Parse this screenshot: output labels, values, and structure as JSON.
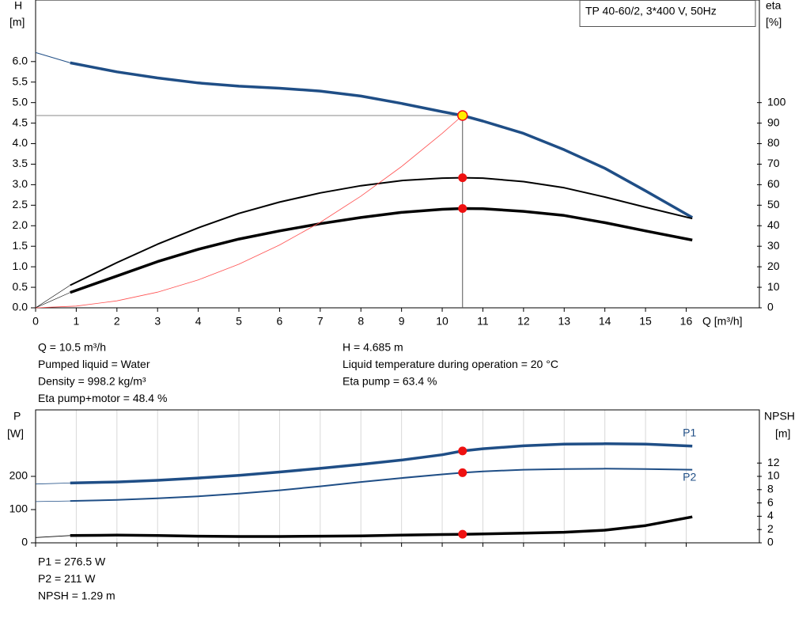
{
  "chart_data": [
    {
      "type": "line",
      "title": "TP 40-60/2, 3*400 V, 50Hz",
      "y_label": "H",
      "y_unit": "[m]",
      "y2_label": "eta",
      "y2_unit": "[%]",
      "x_label": "Q [m³/h]",
      "xlim": [
        0,
        17.8
      ],
      "xticks": [
        0,
        1,
        2,
        3,
        4,
        5,
        6,
        7,
        8,
        9,
        10,
        11,
        12,
        13,
        14,
        15,
        16
      ],
      "xtick_labels": true,
      "grid": false,
      "ylim": [
        0,
        7.5
      ],
      "yticks": [
        {
          "value": 0,
          "label": "0.0"
        },
        0.5,
        {
          "value": 1,
          "label": "1.0"
        },
        1.5,
        {
          "value": 2,
          "label": "2.0"
        },
        2.5,
        {
          "value": 3,
          "label": "3.0"
        },
        3.5,
        {
          "value": 4,
          "label": "4.0"
        },
        4.5,
        {
          "value": 5,
          "label": "5.0"
        },
        5.5,
        {
          "value": 6,
          "label": "6.0"
        }
      ],
      "y2lim": [
        0,
        150
      ],
      "y2ticks": [
        0,
        10,
        20,
        30,
        40,
        50,
        60,
        70,
        80,
        90,
        100
      ],
      "series": [
        {
          "color": "#1f4e86",
          "width": 1,
          "x": [
            0,
            0.85
          ],
          "values": [
            6.22,
            5.97
          ]
        },
        {
          "color": "#1f4e86",
          "width": 3.5,
          "x": [
            0.85,
            2,
            3,
            4,
            5,
            6,
            7,
            8,
            9,
            10,
            10.5,
            11,
            12,
            13,
            14,
            15,
            16.15
          ],
          "values": [
            5.97,
            5.75,
            5.6,
            5.48,
            5.4,
            5.35,
            5.28,
            5.16,
            4.98,
            4.78,
            4.685,
            4.55,
            4.25,
            3.85,
            3.4,
            2.85,
            2.2
          ]
        },
        {
          "color": "#000000",
          "width": 0.6,
          "axis": "y2",
          "x": [
            0,
            0.85
          ],
          "values": [
            0,
            11
          ]
        },
        {
          "color": "#000000",
          "width": 2,
          "axis": "y2",
          "x": [
            0.85,
            2,
            3,
            4,
            5,
            6,
            7,
            8,
            9,
            10,
            10.5,
            11,
            12,
            13,
            14,
            15,
            16.15
          ],
          "values": [
            11,
            22,
            31,
            39,
            46,
            51.5,
            56,
            59.5,
            62,
            63.2,
            63.4,
            63.2,
            61.5,
            58.5,
            54,
            49,
            43.5
          ]
        },
        {
          "color": "#000000",
          "width": 0.6,
          "axis": "y2",
          "x": [
            0,
            0.85
          ],
          "values": [
            0,
            7.5
          ]
        },
        {
          "color": "#000000",
          "width": 3.5,
          "axis": "y2",
          "x": [
            0.85,
            2,
            3,
            4,
            5,
            6,
            7,
            8,
            9,
            10,
            10.5,
            11,
            12,
            13,
            14,
            15,
            16.15
          ],
          "values": [
            7.5,
            15.5,
            22.5,
            28.5,
            33.5,
            37.5,
            41,
            44,
            46.5,
            48,
            48.4,
            48.3,
            47,
            45,
            41.5,
            37.5,
            33
          ]
        },
        {
          "color": "#ff5050",
          "width": 0.8,
          "x": [
            0,
            1,
            2,
            3,
            4,
            5,
            6,
            7,
            8,
            9,
            10,
            10.5
          ],
          "values": [
            0,
            0.042,
            0.17,
            0.382,
            0.68,
            1.062,
            1.53,
            2.082,
            2.72,
            3.442,
            4.249,
            4.685
          ]
        }
      ],
      "operating_point": {
        "x": 10.5,
        "y": 4.685,
        "color": "#ffee00"
      },
      "markers": [
        {
          "x": 10.5,
          "value": 63.4,
          "axis": "y2",
          "color": "#ee1111"
        },
        {
          "x": 10.5,
          "value": 48.4,
          "axis": "y2",
          "color": "#ee1111"
        }
      ],
      "notes_left": [
        "Q = 10.5 m³/h",
        "Pumped liquid = Water",
        "Density = 998.2 kg/m³",
        "Eta pump+motor = 48.4 %"
      ],
      "notes_right": [
        "H = 4.685 m",
        "Liquid temperature during operation = 20 °C",
        "Eta pump = 63.4 %"
      ]
    },
    {
      "type": "line",
      "y_label": "P",
      "y_unit": "[W]",
      "y2_label": "NPSH",
      "y2_unit": "[m]",
      "xlim": [
        0,
        17.8
      ],
      "xticks": [
        0,
        1,
        2,
        3,
        4,
        5,
        6,
        7,
        8,
        9,
        10,
        11,
        12,
        13,
        14,
        15,
        16
      ],
      "xtick_labels": false,
      "grid": true,
      "ylim": [
        0,
        400
      ],
      "yticks": [
        0,
        100,
        200
      ],
      "y2lim": [
        0,
        20
      ],
      "y2ticks": [
        0,
        2,
        4,
        6,
        8,
        10,
        12
      ],
      "series": [
        {
          "color": "#1f4e86",
          "width": 0.8,
          "x": [
            0,
            0.85
          ],
          "values": [
            177,
            180
          ]
        },
        {
          "name": "P1",
          "label_pos": "above",
          "color": "#1f4e86",
          "width": 3.5,
          "x": [
            0.85,
            2,
            3,
            4,
            5,
            6,
            7,
            8,
            9,
            10,
            10.5,
            11,
            12,
            13,
            14,
            15,
            16.15
          ],
          "values": [
            180,
            183,
            188,
            195,
            203,
            213,
            224,
            236,
            249,
            265,
            276.5,
            283,
            292,
            297,
            298,
            297,
            291
          ]
        },
        {
          "color": "#1f4e86",
          "width": 0.8,
          "x": [
            0,
            0.85
          ],
          "values": [
            124,
            126
          ]
        },
        {
          "name": "P2",
          "label_pos": "below",
          "color": "#1f4e86",
          "width": 2,
          "x": [
            0.85,
            2,
            3,
            4,
            5,
            6,
            7,
            8,
            9,
            10,
            10.5,
            11,
            12,
            13,
            14,
            15,
            16.15
          ],
          "values": [
            126,
            129,
            134,
            140,
            148,
            158,
            170,
            183,
            195,
            206,
            211,
            215,
            220,
            222,
            223,
            222,
            220
          ]
        },
        {
          "color": "#000000",
          "width": 0.8,
          "axis": "y2",
          "x": [
            0,
            0.85
          ],
          "values": [
            0.8,
            1.1
          ]
        },
        {
          "color": "#000000",
          "width": 3.5,
          "axis": "y2",
          "x": [
            0.85,
            2,
            3,
            4,
            5,
            6,
            7,
            8,
            9,
            10,
            10.5,
            11,
            12,
            13,
            14,
            15,
            16.15
          ],
          "values": [
            1.1,
            1.15,
            1.1,
            1.0,
            0.95,
            0.95,
            1.0,
            1.05,
            1.15,
            1.25,
            1.29,
            1.35,
            1.45,
            1.6,
            1.9,
            2.6,
            3.9
          ]
        }
      ],
      "markers": [
        {
          "x": 10.5,
          "value": 276.5,
          "color": "#ee1111"
        },
        {
          "x": 10.5,
          "value": 211,
          "color": "#ee1111"
        },
        {
          "x": 10.5,
          "value": 1.29,
          "axis": "y2",
          "color": "#ee1111"
        }
      ],
      "notes_left": [
        "P1 = 276.5 W",
        "P2 = 211 W",
        "NPSH = 1.29 m"
      ]
    }
  ]
}
